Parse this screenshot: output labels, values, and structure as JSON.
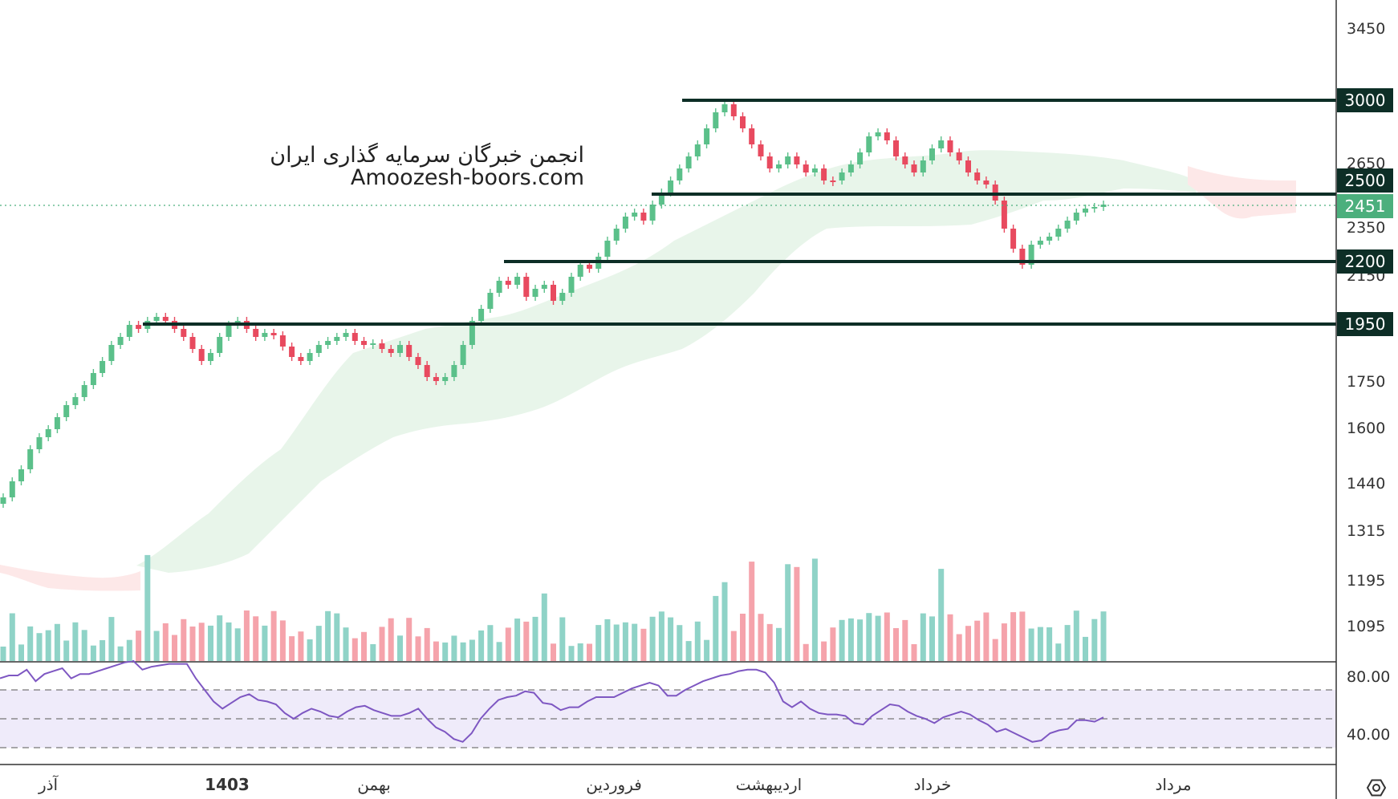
{
  "watermark": {
    "line1": "انجمن خبرگان سرمایه گذاری ایران",
    "line2": "Amoozesh-boors.com"
  },
  "colors": {
    "up": "#26a69a",
    "down": "#ef5350",
    "up_candle": "#5bc08a",
    "down_candle": "#e84a5f",
    "level": "#0d2e26",
    "current": "#4caf7d",
    "rsi": "#7e57c2",
    "rsi_band": "#ede7f6",
    "cloud_up": "#e3f2e6",
    "cloud_down": "#fde5e5"
  },
  "chart_data": {
    "type": "candlestick",
    "price_axis_ticks": [
      "3450",
      "2650",
      "2350",
      "2150",
      "1750",
      "1600",
      "1440",
      "1315",
      "1195",
      "1095"
    ],
    "levels": [
      {
        "value": 3000,
        "label": "3000"
      },
      {
        "value": 2500,
        "label": "2500"
      },
      {
        "value": 2200,
        "label": "2200"
      },
      {
        "value": 1950,
        "label": "1950"
      }
    ],
    "current_price": {
      "value": 2451,
      "label": "2451"
    },
    "time_labels": [
      "آذر",
      "1403",
      "بهمن",
      "فروردین",
      "اردیبهشت",
      "خرداد",
      "مرداد"
    ],
    "rsi": {
      "ticks": [
        "80.00",
        "40.00"
      ],
      "upper": 70,
      "middle": 50,
      "lower": 30,
      "values": [
        78,
        80,
        80,
        84,
        76,
        81,
        83,
        85,
        78,
        81,
        81,
        83,
        85,
        87,
        89,
        90,
        84,
        86,
        87,
        88,
        88,
        88,
        78,
        70,
        62,
        57,
        61,
        65,
        67,
        63,
        62,
        60,
        54,
        50,
        54,
        57,
        55,
        52,
        51,
        55,
        58,
        59,
        56,
        54,
        52,
        52,
        54,
        57,
        50,
        44,
        41,
        36,
        34,
        40,
        50,
        57,
        63,
        65,
        66,
        69,
        68,
        61,
        60,
        56,
        58,
        58,
        62,
        65,
        65,
        65,
        68,
        71,
        73,
        75,
        73,
        66,
        66,
        70,
        73,
        76,
        78,
        80,
        81,
        83,
        84,
        84,
        82,
        75,
        62,
        58,
        62,
        57,
        54,
        53,
        53,
        52,
        47,
        46,
        52,
        56,
        60,
        59,
        55,
        52,
        50,
        47,
        51,
        53,
        55,
        53,
        49,
        46,
        41,
        43,
        40,
        37,
        34,
        35,
        40,
        42,
        43,
        49,
        49,
        48,
        51
      ]
    },
    "volume_note": "bars colored by candle direction"
  }
}
